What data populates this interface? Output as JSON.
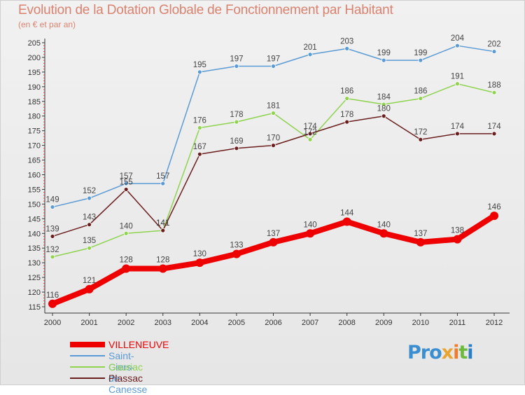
{
  "title": "Evolution de la Dotation Globale de Fonctionnement par Habitant",
  "subtitle": "(en € et par an)",
  "logo": [
    "Pro",
    "x",
    "i",
    "t",
    "i"
  ],
  "chart_data": {
    "type": "line",
    "x": [
      "2000",
      "2001",
      "2002",
      "2003",
      "2004",
      "2005",
      "2006",
      "2007",
      "2008",
      "2009",
      "2010",
      "2011",
      "2012"
    ],
    "ylim": [
      115,
      205
    ],
    "yticks": [
      115,
      120,
      125,
      130,
      135,
      140,
      145,
      150,
      155,
      160,
      165,
      170,
      175,
      180,
      185,
      190,
      195,
      200,
      205
    ],
    "grid": false,
    "legend": "bottom-left",
    "series": [
      {
        "name": "Saint-Ciers-de-Canesse",
        "color": "#5b9bd5",
        "values": [
          149,
          152,
          157,
          157,
          195,
          197,
          197,
          201,
          203,
          199,
          199,
          204,
          202
        ]
      },
      {
        "name": "Gauriac",
        "color": "#8fd34f",
        "values": [
          132,
          135,
          140,
          141,
          176,
          178,
          181,
          172,
          186,
          184,
          186,
          191,
          188
        ]
      },
      {
        "name": "Plassac",
        "color": "#6b1e1e",
        "values": [
          139,
          143,
          155,
          141,
          167,
          169,
          170,
          174,
          178,
          180,
          172,
          174,
          174
        ]
      },
      {
        "name": "VILLENEUVE",
        "color": "#ee0000",
        "values": [
          116,
          121,
          128,
          128,
          130,
          133,
          137,
          140,
          144,
          140,
          137,
          138,
          146
        ]
      }
    ],
    "legend_order": [
      "VILLENEUVE",
      "Saint-Ciers-de-Canesse",
      "Gauriac",
      "Plassac"
    ]
  }
}
